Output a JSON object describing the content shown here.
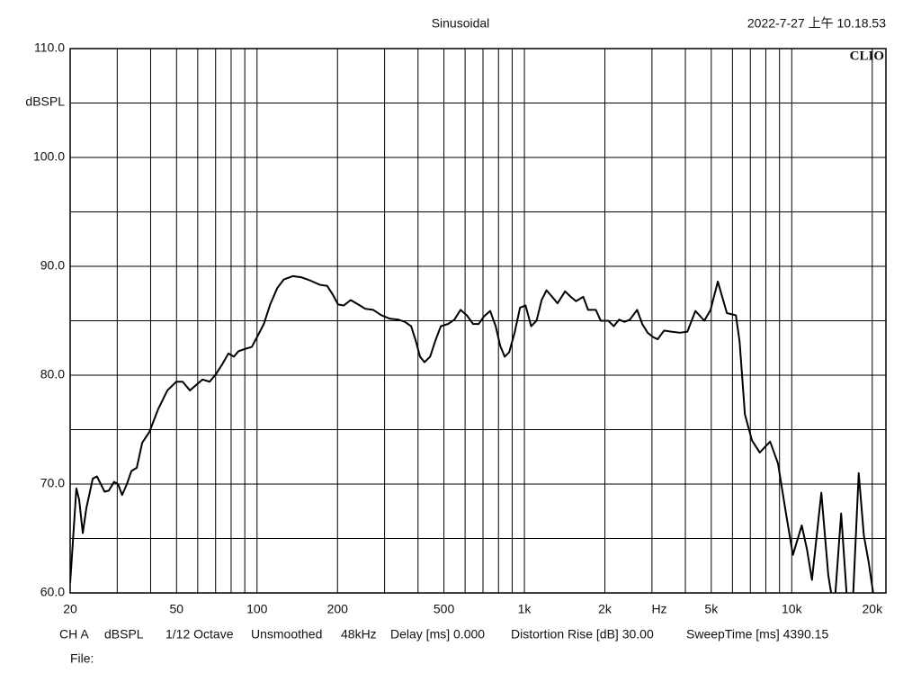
{
  "chart_data": {
    "type": "line",
    "title": "Sinusoidal",
    "timestamp": "2022-7-27 上午 10.18.53",
    "brand": "CLIO",
    "ylabel": "dBSPL",
    "xlabel": "Hz",
    "log_x": true,
    "grid": true,
    "color": "#000000",
    "xlim": [
      20,
      22500
    ],
    "ylim": [
      60,
      110
    ],
    "xticks": [
      20,
      50,
      100,
      200,
      500,
      {
        "value": 1000,
        "label": "1k"
      },
      {
        "value": 2000,
        "label": "2k"
      },
      {
        "value": 5000,
        "label": "5k"
      },
      {
        "value": 10000,
        "label": "10k"
      },
      {
        "value": 20000,
        "label": "20k"
      }
    ],
    "xgrid_minor": [
      30,
      40,
      60,
      70,
      80,
      90,
      300,
      400,
      600,
      700,
      800,
      900,
      3000,
      4000,
      6000,
      7000,
      8000,
      9000
    ],
    "yticks": [
      {
        "value": 60,
        "label": "60.0"
      },
      {
        "value": 70,
        "label": "70.0"
      },
      {
        "value": 80,
        "label": "80.0"
      },
      {
        "value": 90,
        "label": "90.0"
      },
      {
        "value": 100,
        "label": "100.0"
      },
      {
        "value": 110,
        "label": "110.0"
      }
    ],
    "ygrid_minor": [
      65,
      75,
      85,
      95,
      105
    ],
    "x": [
      20,
      20.5,
      21.1,
      21.6,
      22.3,
      23.0,
      24.3,
      25.2,
      26.9,
      27.9,
      29.2,
      30.2,
      31.3,
      32.6,
      33.9,
      35.5,
      37.2,
      39.6,
      42.7,
      46.2,
      49.9,
      52.7,
      56.1,
      59.2,
      62.5,
      66.5,
      70.2,
      74.1,
      78.2,
      81.9,
      85.2,
      89.9,
      95.6,
      101,
      106,
      112,
      119,
      126,
      136,
      146,
      158,
      172,
      183,
      192,
      201,
      211,
      224,
      239,
      254,
      272,
      292,
      313,
      338,
      357,
      377,
      392,
      407,
      423,
      444,
      465,
      487,
      518,
      547,
      577,
      609,
      643,
      674,
      706,
      745,
      781,
      812,
      844,
      877,
      919,
      963,
      1010,
      1060,
      1110,
      1160,
      1210,
      1270,
      1330,
      1420,
      1490,
      1560,
      1660,
      1730,
      1850,
      1930,
      2060,
      2160,
      2260,
      2370,
      2480,
      2640,
      2760,
      2890,
      3030,
      3150,
      3330,
      3540,
      3820,
      4070,
      4360,
      4710,
      4970,
      5290,
      5720,
      6180,
      6380,
      6680,
      7100,
      7590,
      8300,
      8880,
      9500,
      10100,
      10900,
      11400,
      11900,
      12900,
      13700,
      14400,
      15300,
      16100,
      16800,
      17800,
      18600,
      19400,
      20300
    ],
    "values": [
      60.9,
      64.9,
      69.6,
      68.6,
      65.5,
      67.8,
      70.5,
      70.7,
      69.3,
      69.4,
      70.2,
      70.0,
      69.0,
      70.0,
      71.2,
      71.5,
      73.8,
      74.8,
      76.9,
      78.6,
      79.4,
      79.4,
      78.6,
      79.1,
      79.6,
      79.4,
      80.1,
      81.0,
      82.0,
      81.7,
      82.2,
      82.4,
      82.6,
      83.7,
      84.7,
      86.5,
      88.0,
      88.8,
      89.1,
      89.0,
      88.7,
      88.3,
      88.2,
      87.4,
      86.5,
      86.4,
      86.9,
      86.5,
      86.1,
      86.0,
      85.5,
      85.2,
      85.1,
      84.9,
      84.5,
      83.2,
      81.7,
      81.2,
      81.7,
      83.2,
      84.5,
      84.7,
      85.1,
      86.0,
      85.5,
      84.7,
      84.7,
      85.4,
      85.9,
      84.5,
      82.7,
      81.7,
      82.1,
      83.9,
      86.2,
      86.4,
      84.5,
      85.0,
      86.9,
      87.8,
      87.2,
      86.6,
      87.7,
      87.2,
      86.8,
      87.2,
      86.0,
      86.0,
      85.0,
      85.0,
      84.5,
      85.1,
      84.9,
      85.1,
      86.0,
      84.7,
      83.9,
      83.5,
      83.3,
      84.1,
      84.0,
      83.9,
      84.0,
      85.9,
      85.0,
      86.0,
      88.6,
      85.7,
      85.5,
      83.1,
      76.4,
      74.0,
      72.9,
      73.9,
      71.9,
      67.4,
      63.5,
      66.2,
      64.0,
      61.2,
      69.2,
      61.6,
      58.3,
      67.3,
      59.3,
      57.5,
      71.0,
      65.3,
      62.8,
      59.5
    ],
    "footer": [
      "CH A",
      "dBSPL",
      "1/12 Octave",
      "Unsmoothed",
      "48kHz",
      "Delay [ms] 0.000",
      "Distortion Rise [dB] 30.00",
      "SweepTime [ms] 4390.15"
    ],
    "file_label": "File:"
  }
}
